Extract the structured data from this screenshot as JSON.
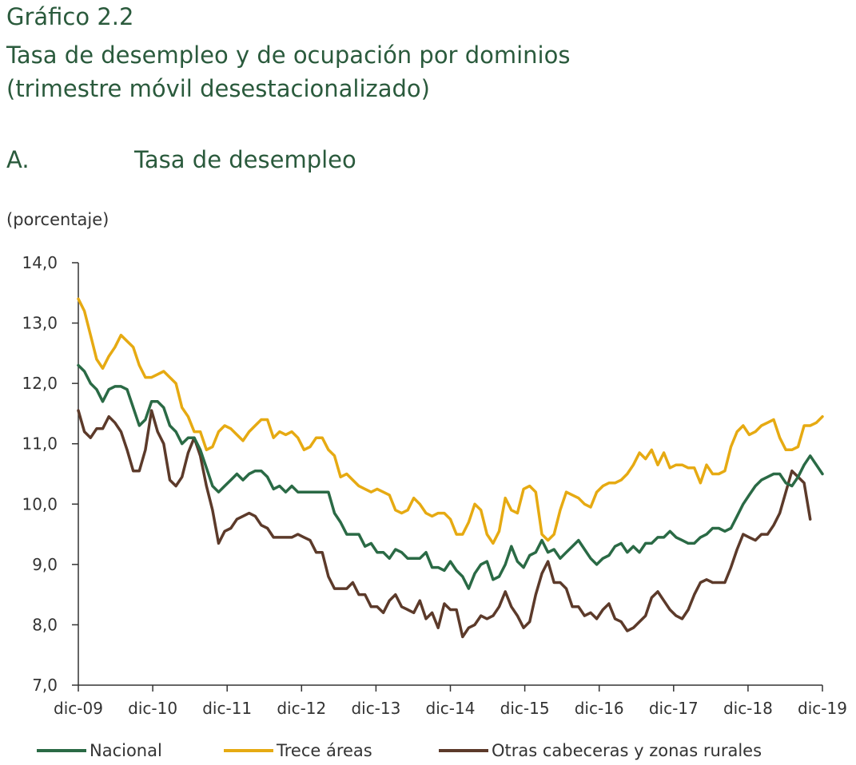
{
  "header": {
    "figure_number": "Gráfico 2.2",
    "title": "Tasa de desempleo y de ocupación por dominios",
    "subtitle": "(trimestre móvil desestacionalizado)",
    "panel_letter": "A.",
    "panel_title": "Tasa de desempleo",
    "unit": "(porcentaje)"
  },
  "chart_data": {
    "type": "line",
    "title": "Tasa de desempleo",
    "ylabel": "(porcentaje)",
    "ylim": [
      7.0,
      14.0
    ],
    "yticks": [
      "14,0",
      "13,0",
      "12,0",
      "11,0",
      "10,0",
      "9,0",
      "8,0",
      "7,0"
    ],
    "ytick_values": [
      14,
      13,
      12,
      11,
      10,
      9,
      8,
      7
    ],
    "xticks": [
      "dic-09",
      "dic-10",
      "dic-11",
      "dic-12",
      "dic-13",
      "dic-14",
      "dic-15",
      "dic-16",
      "dic-17",
      "dic-18",
      "dic-19"
    ],
    "x_start": "dic-09",
    "x_end": "dic-19",
    "grid": false,
    "legend_position": "bottom",
    "series": [
      {
        "name": "Nacional",
        "color": "#2a6a45",
        "values": [
          12.3,
          12.2,
          12.0,
          11.9,
          11.7,
          11.9,
          11.95,
          11.95,
          11.9,
          11.6,
          11.3,
          11.4,
          11.7,
          11.7,
          11.6,
          11.3,
          11.2,
          11.0,
          11.1,
          11.1,
          10.9,
          10.6,
          10.3,
          10.2,
          10.3,
          10.4,
          10.5,
          10.4,
          10.5,
          10.55,
          10.55,
          10.45,
          10.25,
          10.3,
          10.2,
          10.3,
          10.2,
          10.2,
          10.2,
          10.2,
          10.2,
          10.2,
          9.85,
          9.7,
          9.5,
          9.5,
          9.5,
          9.3,
          9.35,
          9.2,
          9.2,
          9.1,
          9.25,
          9.2,
          9.1,
          9.1,
          9.1,
          9.2,
          8.95,
          8.95,
          8.9,
          9.05,
          8.9,
          8.8,
          8.6,
          8.85,
          9.0,
          9.05,
          8.75,
          8.8,
          9.0,
          9.3,
          9.05,
          8.95,
          9.15,
          9.2,
          9.4,
          9.2,
          9.25,
          9.1,
          9.2,
          9.3,
          9.4,
          9.25,
          9.1,
          9.0,
          9.1,
          9.15,
          9.3,
          9.35,
          9.2,
          9.3,
          9.2,
          9.35,
          9.35,
          9.45,
          9.45,
          9.55,
          9.45,
          9.4,
          9.35,
          9.35,
          9.45,
          9.5,
          9.6,
          9.6,
          9.55,
          9.6,
          9.8,
          10.0,
          10.15,
          10.3,
          10.4,
          10.45,
          10.5,
          10.5,
          10.35,
          10.3,
          10.45,
          10.65,
          10.8,
          10.65,
          10.5
        ]
      },
      {
        "name": "Trece áreas",
        "color": "#e6aa12",
        "values": [
          13.4,
          13.2,
          12.8,
          12.4,
          12.25,
          12.45,
          12.6,
          12.8,
          12.7,
          12.6,
          12.3,
          12.1,
          12.1,
          12.15,
          12.2,
          12.1,
          12.0,
          11.6,
          11.45,
          11.2,
          11.2,
          10.9,
          10.95,
          11.2,
          11.3,
          11.25,
          11.15,
          11.05,
          11.2,
          11.3,
          11.4,
          11.4,
          11.1,
          11.2,
          11.15,
          11.2,
          11.1,
          10.9,
          10.95,
          11.1,
          11.1,
          10.9,
          10.8,
          10.45,
          10.5,
          10.4,
          10.3,
          10.25,
          10.2,
          10.25,
          10.2,
          10.15,
          9.9,
          9.85,
          9.9,
          10.1,
          10.0,
          9.85,
          9.8,
          9.85,
          9.85,
          9.75,
          9.5,
          9.5,
          9.7,
          10.0,
          9.9,
          9.5,
          9.35,
          9.55,
          10.1,
          9.9,
          9.85,
          10.25,
          10.3,
          10.2,
          9.5,
          9.4,
          9.5,
          9.9,
          10.2,
          10.15,
          10.1,
          10.0,
          9.95,
          10.2,
          10.3,
          10.35,
          10.35,
          10.4,
          10.5,
          10.65,
          10.85,
          10.75,
          10.9,
          10.65,
          10.85,
          10.6,
          10.65,
          10.65,
          10.6,
          10.6,
          10.35,
          10.65,
          10.5,
          10.5,
          10.55,
          10.95,
          11.2,
          11.3,
          11.15,
          11.2,
          11.3,
          11.35,
          11.4,
          11.1,
          10.9,
          10.9,
          10.95,
          11.3,
          11.3,
          11.35,
          11.45
        ]
      },
      {
        "name": "Otras cabeceras y zonas rurales",
        "color": "#5c3a2a",
        "values": [
          11.55,
          11.2,
          11.1,
          11.25,
          11.25,
          11.45,
          11.35,
          11.2,
          10.9,
          10.55,
          10.55,
          10.9,
          11.55,
          11.2,
          11.0,
          10.4,
          10.3,
          10.45,
          10.85,
          11.1,
          10.8,
          10.3,
          9.9,
          9.35,
          9.55,
          9.6,
          9.75,
          9.8,
          9.85,
          9.8,
          9.65,
          9.6,
          9.45,
          9.45,
          9.45,
          9.45,
          9.5,
          9.45,
          9.4,
          9.2,
          9.2,
          8.8,
          8.6,
          8.6,
          8.6,
          8.7,
          8.5,
          8.5,
          8.3,
          8.3,
          8.2,
          8.4,
          8.5,
          8.3,
          8.25,
          8.2,
          8.4,
          8.1,
          8.2,
          7.95,
          8.35,
          8.25,
          8.25,
          7.8,
          7.95,
          8.0,
          8.15,
          8.1,
          8.15,
          8.3,
          8.55,
          8.3,
          8.15,
          7.95,
          8.05,
          8.5,
          8.85,
          9.05,
          8.7,
          8.7,
          8.6,
          8.3,
          8.3,
          8.15,
          8.2,
          8.1,
          8.25,
          8.35,
          8.1,
          8.05,
          7.9,
          7.95,
          8.05,
          8.15,
          8.45,
          8.55,
          8.4,
          8.25,
          8.15,
          8.1,
          8.25,
          8.5,
          8.7,
          8.75,
          8.7,
          8.7,
          8.7,
          8.95,
          9.25,
          9.5,
          9.45,
          9.4,
          9.5,
          9.5,
          9.65,
          9.85,
          10.2,
          10.55,
          10.45,
          10.35,
          9.75
        ]
      }
    ]
  }
}
